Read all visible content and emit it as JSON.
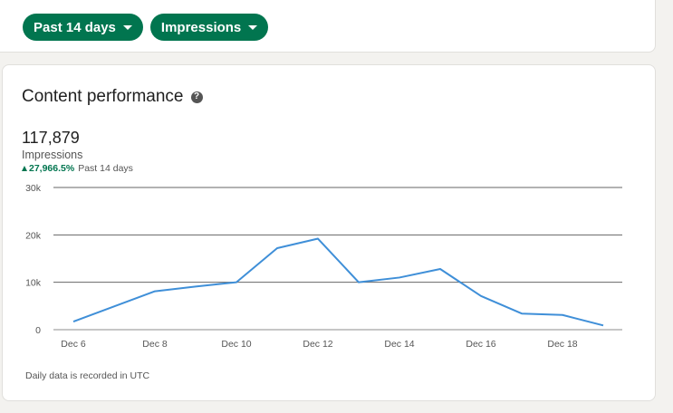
{
  "filters": {
    "date_range": "Past 14 days",
    "metric": "Impressions"
  },
  "content_performance": {
    "title": "Content performance",
    "help_glyph": "?",
    "total_value": "117,879",
    "metric_label": "Impressions",
    "change": "27,966.5%",
    "change_period": "Past 14 days",
    "footnote": "Daily data is recorded in UTC"
  },
  "colors": {
    "accent_green": "#01754f",
    "line_blue": "#3f8fd8"
  },
  "chart_data": {
    "type": "line",
    "x": [
      "Dec 6",
      "Dec 7",
      "Dec 8",
      "Dec 9",
      "Dec 10",
      "Dec 11",
      "Dec 12",
      "Dec 13",
      "Dec 14",
      "Dec 15",
      "Dec 16",
      "Dec 17",
      "Dec 18",
      "Dec 19"
    ],
    "x_tick_labels": [
      "Dec 6",
      "Dec 8",
      "Dec 10",
      "Dec 12",
      "Dec 14",
      "Dec 16",
      "Dec 18"
    ],
    "series": [
      {
        "values": [
          1700,
          4900,
          8100,
          9100,
          10000,
          17200,
          19200,
          10000,
          11000,
          12800,
          7100,
          3400,
          3100,
          900
        ]
      }
    ],
    "y_ticks": [
      0,
      10000,
      20000,
      30000
    ],
    "y_tick_labels": [
      "0",
      "10k",
      "20k",
      "30k"
    ],
    "ylim": [
      0,
      30000
    ],
    "grid": true
  }
}
